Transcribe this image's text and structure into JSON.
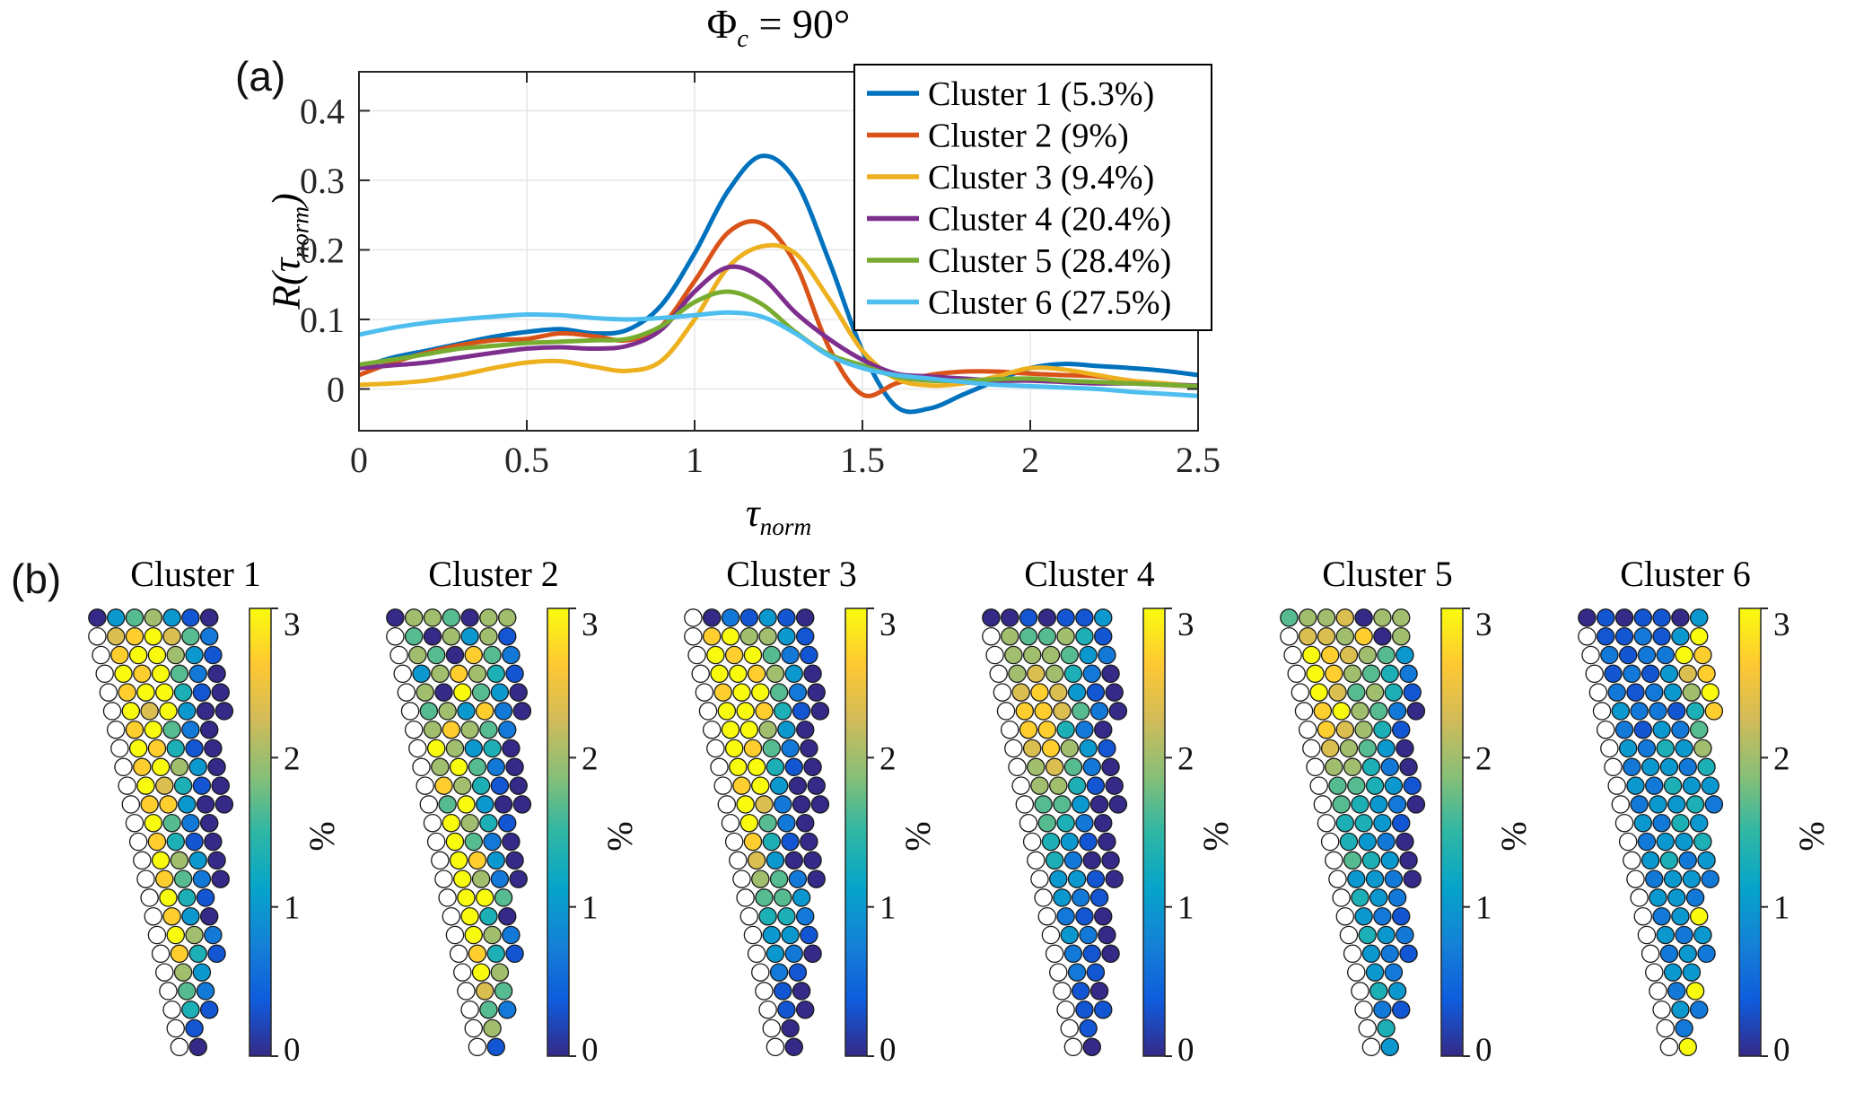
{
  "figure": {
    "panel_a_label": "(a)",
    "panel_b_label": "(b)"
  },
  "title": {
    "phi": "Φ",
    "sub": "c",
    "rest": " = 90°"
  },
  "axes": {
    "ylabel": {
      "pre": "R(",
      "tau": "τ",
      "sub": "norm",
      "post": ")"
    },
    "xlabel": {
      "tau": "τ",
      "sub": "norm"
    }
  },
  "colormap": {
    "name": "parula",
    "stops": [
      "#352a87",
      "#0f5cdd",
      "#1481d6",
      "#06a4ca",
      "#2eb7a4",
      "#87bf77",
      "#d1bb59",
      "#fec832",
      "#f9fb0e"
    ]
  },
  "chart_data": [
    {
      "type": "line",
      "title": "Phi_c = 90°",
      "xlabel": "tau_norm",
      "ylabel": "R(tau_norm)",
      "xlim": [
        0,
        2.5
      ],
      "ylim": [
        -0.06,
        0.456
      ],
      "x_ticks": [
        0,
        0.5,
        1,
        1.5,
        2,
        2.5
      ],
      "y_ticks": [
        0,
        0.1,
        0.2,
        0.3,
        0.4
      ],
      "grid": true,
      "legend_position": "top-right",
      "x": [
        0,
        0.1,
        0.2,
        0.3,
        0.4,
        0.5,
        0.6,
        0.7,
        0.8,
        0.9,
        1.0,
        1.1,
        1.2,
        1.3,
        1.4,
        1.5,
        1.6,
        1.7,
        1.8,
        1.9,
        2.0,
        2.1,
        2.2,
        2.3,
        2.4,
        2.5
      ],
      "series": [
        {
          "name": "Cluster 1 (5.3%)",
          "color": "#0072BD",
          "values": [
            0.03,
            0.045,
            0.055,
            0.065,
            0.075,
            0.082,
            0.086,
            0.08,
            0.085,
            0.12,
            0.195,
            0.285,
            0.335,
            0.3,
            0.185,
            0.055,
            -0.025,
            -0.028,
            -0.008,
            0.012,
            0.03,
            0.036,
            0.033,
            0.03,
            0.026,
            0.02
          ]
        },
        {
          "name": "Cluster 2 (9%)",
          "color": "#D95319",
          "values": [
            0.02,
            0.038,
            0.052,
            0.063,
            0.07,
            0.072,
            0.08,
            0.076,
            0.07,
            0.09,
            0.155,
            0.225,
            0.238,
            0.18,
            0.06,
            -0.008,
            0.008,
            0.02,
            0.025,
            0.025,
            0.022,
            0.02,
            0.018,
            0.012,
            0.006,
            0.004
          ]
        },
        {
          "name": "Cluster 3 (9.4%)",
          "color": "#EDB120",
          "values": [
            0.006,
            0.008,
            0.012,
            0.02,
            0.03,
            0.038,
            0.04,
            0.032,
            0.026,
            0.04,
            0.1,
            0.175,
            0.205,
            0.195,
            0.13,
            0.055,
            0.015,
            0.005,
            0.008,
            0.018,
            0.03,
            0.028,
            0.02,
            0.012,
            0.008,
            0.004
          ]
        },
        {
          "name": "Cluster 4 (20.4%)",
          "color": "#7E2F8E",
          "values": [
            0.03,
            0.034,
            0.038,
            0.045,
            0.052,
            0.058,
            0.06,
            0.058,
            0.062,
            0.085,
            0.14,
            0.175,
            0.16,
            0.11,
            0.072,
            0.042,
            0.022,
            0.018,
            0.015,
            0.012,
            0.012,
            0.01,
            0.008,
            0.008,
            0.006,
            0.005
          ]
        },
        {
          "name": "Cluster 5 (28.4%)",
          "color": "#77AC30",
          "values": [
            0.035,
            0.042,
            0.05,
            0.058,
            0.062,
            0.066,
            0.068,
            0.07,
            0.072,
            0.09,
            0.125,
            0.14,
            0.122,
            0.082,
            0.05,
            0.034,
            0.018,
            0.012,
            0.012,
            0.014,
            0.015,
            0.012,
            0.01,
            0.008,
            0.006,
            0.004
          ]
        },
        {
          "name": "Cluster 6 (27.5%)",
          "color": "#4DBEEE",
          "values": [
            0.078,
            0.088,
            0.095,
            0.1,
            0.104,
            0.107,
            0.106,
            0.102,
            0.1,
            0.102,
            0.106,
            0.11,
            0.104,
            0.08,
            0.048,
            0.03,
            0.02,
            0.015,
            0.01,
            0.006,
            0.004,
            0.002,
            0.0,
            -0.004,
            -0.007,
            -0.01
          ]
        }
      ]
    },
    {
      "type": "scatter",
      "subtype": "cluster-dot-maps",
      "description": "Six wedge-shaped dot maps; dot color encodes % occurrence via parula colormap; 'w' = white (empty) dot",
      "value_encoding": "digit d maps to value d/3 on 0-3 % scale; 'w' is a white dot",
      "colorbar": {
        "min": 0,
        "max": 3,
        "ticks": [
          0,
          1,
          2,
          3
        ],
        "label": "%"
      },
      "row_offsets": [
        0,
        0,
        0.2,
        0.4,
        0.6,
        0.8,
        1.0,
        1.2,
        1.4,
        1.6,
        1.8,
        2.0,
        2.2,
        2.4,
        2.6,
        2.8,
        3.0,
        3.2,
        3.4,
        3.6,
        3.8,
        4.0,
        4.2,
        4.4
      ],
      "maps": [
        {
          "title": "Cluster 1",
          "rows": [
            "0356310",
            "w789752",
            "w899631",
            "w989520",
            "w899410",
            "w979300",
            "w89520",
            "w98410",
            "w89630",
            "w97410",
            "w88300",
            "w9520",
            "w8410",
            "w9630",
            "w8520",
            "w941",
            "w830",
            "w962",
            "w841",
            "w63",
            "w52",
            "w41",
            "w1",
            "w0"
          ]
        },
        {
          "title": "Cluster 2",
          "rows": [
            "0665066",
            "w506361",
            "w650852",
            "w368641",
            "w609530",
            "w563820",
            "w68652",
            "w96340",
            "w69520",
            "w86410",
            "w59300",
            "w9641",
            "w9520",
            "w9830",
            "w9620",
            "w995",
            "w940",
            "w962",
            "w841",
            "w96",
            "w75",
            "w52",
            "w6",
            "w1"
          ]
        },
        {
          "title": "Cluster 3",
          "rows": [
            "w021310",
            "w896631",
            "w989521",
            "w998630",
            "w899520",
            "w998410",
            "w99630",
            "w98520",
            "w99410",
            "w89300",
            "w97200",
            "w9520",
            "w8410",
            "w7300",
            "w6520",
            "w553",
            "w442",
            "w331",
            "w320",
            "w21",
            "w10",
            "w10",
            "w0",
            "w0"
          ]
        },
        {
          "title": "Cluster 4",
          "rows": [
            "0010113",
            "w655641",
            "w666532",
            "w676420",
            "w787310",
            "w887520",
            "w88420",
            "w78631",
            "w67520",
            "w66410",
            "w55300",
            "w5420",
            "w4310",
            "w4200",
            "w3310",
            "w321",
            "w210",
            "w320",
            "w210",
            "w21",
            "w10",
            "w11",
            "w1",
            "w0"
          ]
        },
        {
          "title": "Cluster 5",
          "rows": [
            "5667066",
            "w776806",
            "w987653",
            "w986542",
            "w975641",
            "w896520",
            "w87641",
            "w76530",
            "w66420",
            "w55431",
            "w54320",
            "w4431",
            "w4320",
            "w5430",
            "w3320",
            "w432",
            "w321",
            "w432",
            "w321",
            "w32",
            "w43",
            "w21",
            "w4",
            "w3"
          ]
        },
        {
          "title": "Cluster 6",
          "rows": [
            "0101103",
            "w112139",
            "w212298",
            "w121378",
            "w212369",
            "w322148",
            "w21325",
            "w32436",
            "w23324",
            "w32433",
            "w23342",
            "w3243",
            "w2334",
            "w3423",
            "w2332",
            "w332",
            "w239",
            "w323",
            "w232",
            "w33",
            "w29",
            "w32",
            "w2",
            "w9"
          ]
        }
      ]
    }
  ]
}
